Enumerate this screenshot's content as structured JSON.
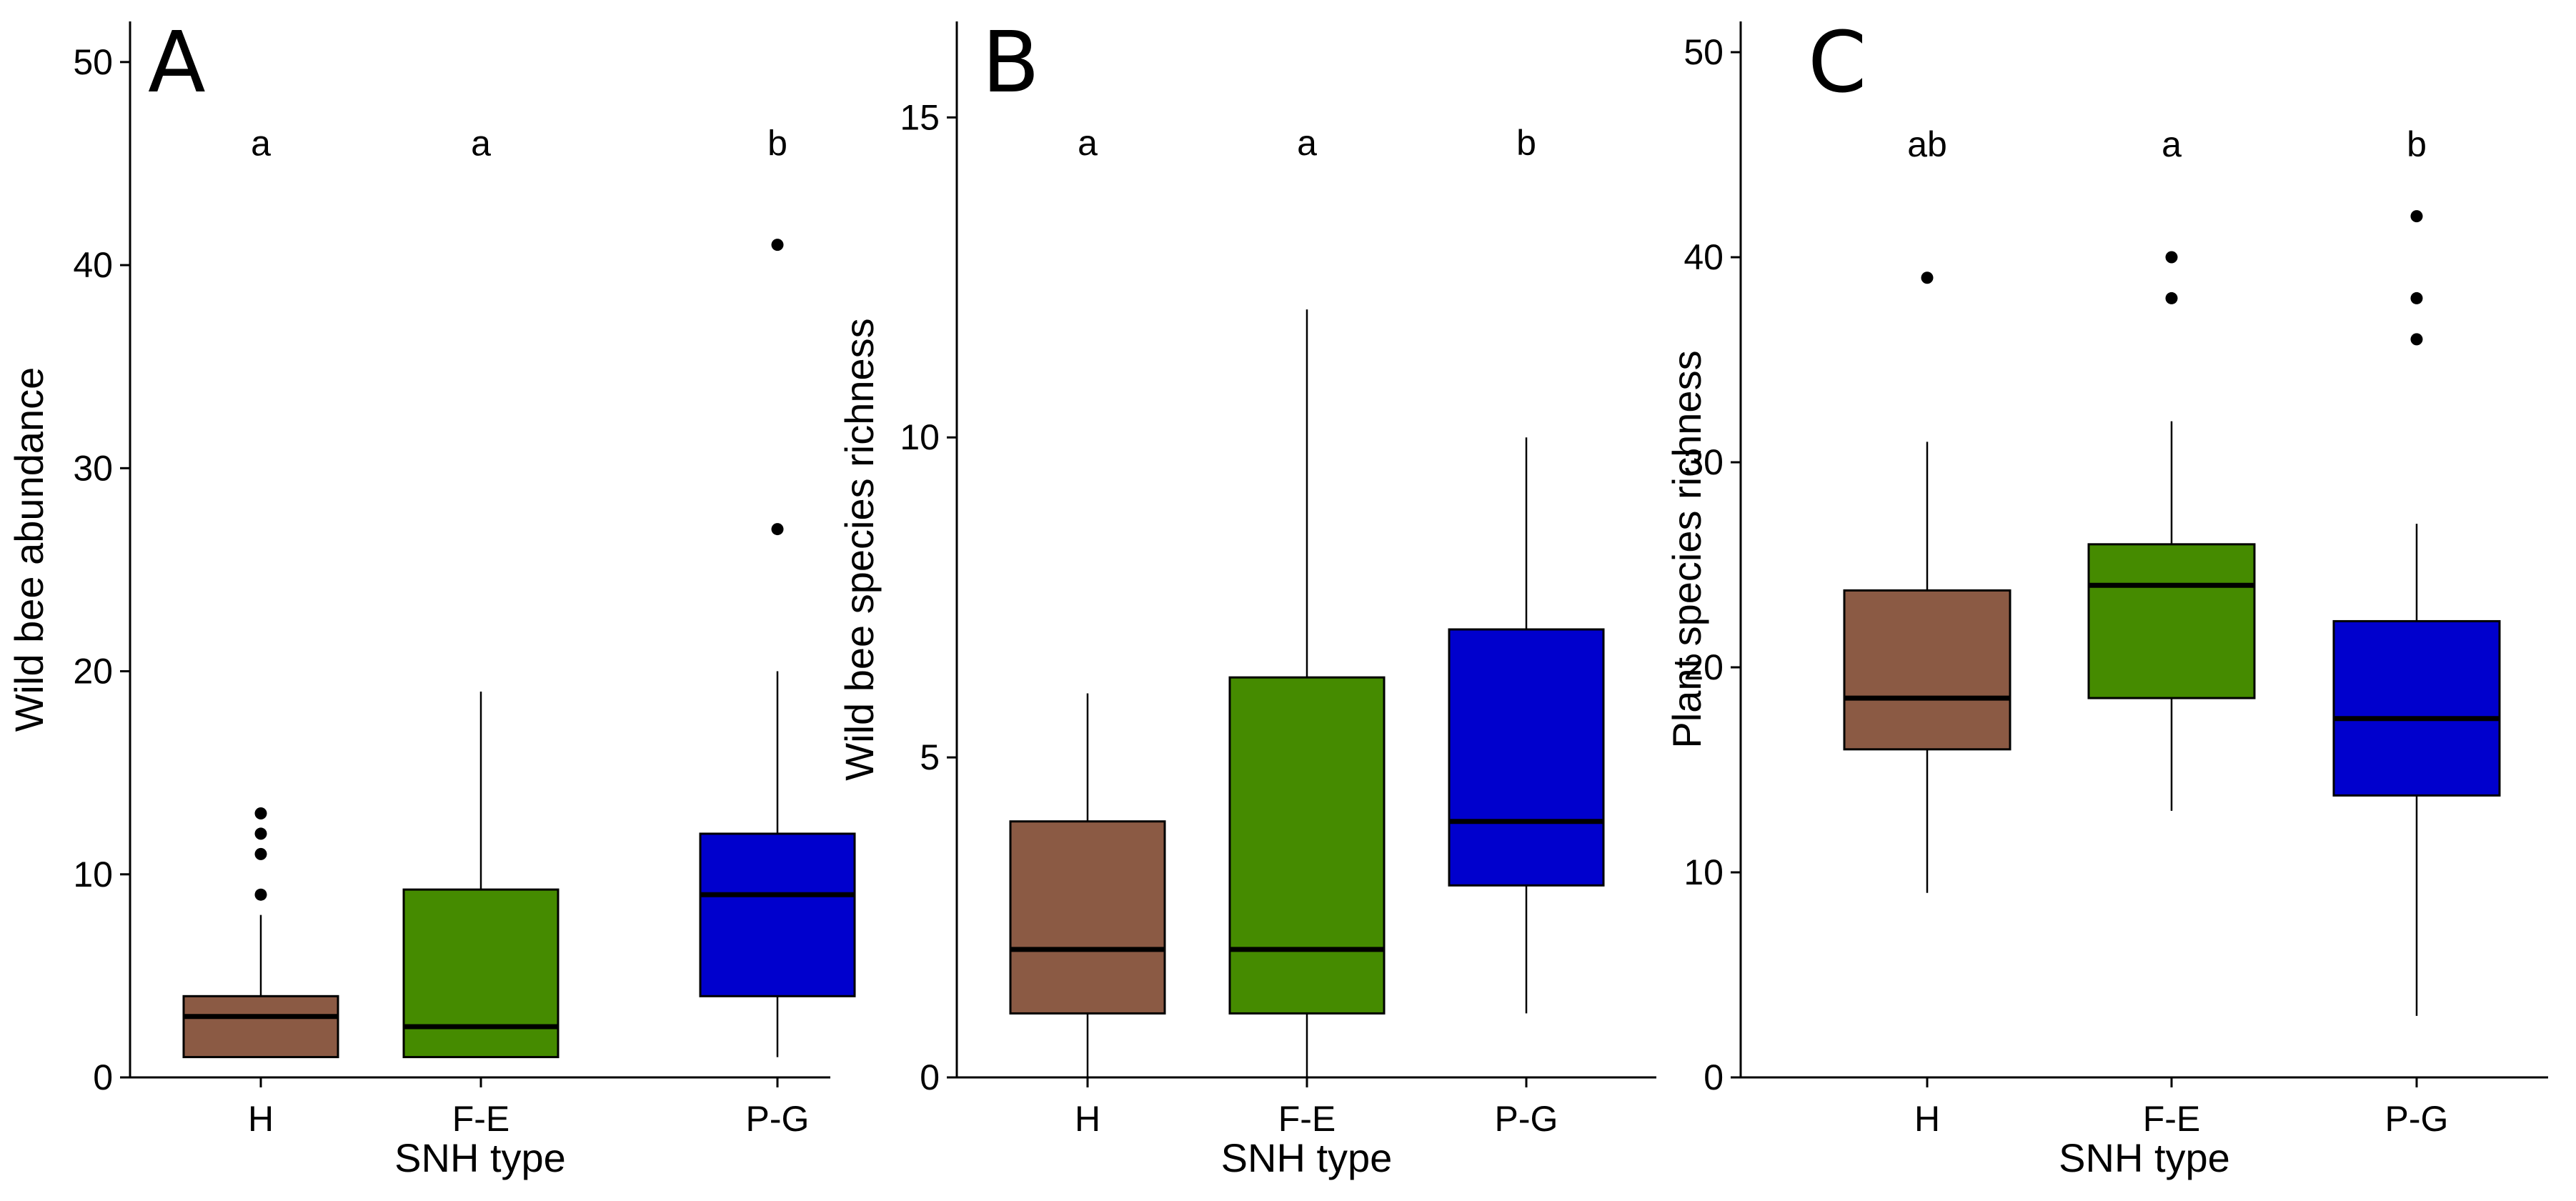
{
  "figure": {
    "fill_colors": {
      "H": "#8B5A44",
      "F-E": "#458B00",
      "P-G": "#0000CD"
    }
  },
  "chart_data": [
    {
      "panel": "A",
      "type": "box",
      "xlabel": "SNH type",
      "ylabel": "Wild bee abundance",
      "categories": [
        "H",
        "F-E",
        "P-G"
      ],
      "ylim": [
        0,
        52
      ],
      "yticks": [
        0,
        10,
        20,
        30,
        40,
        50
      ],
      "sig_y": 46,
      "boxes": [
        {
          "category": "H",
          "q1": 1,
          "median": 3,
          "q3": 4,
          "whisker_low": 1,
          "whisker_high": 8,
          "outliers": [
            9,
            11,
            12,
            13
          ],
          "sig": "a"
        },
        {
          "category": "F-E",
          "q1": 1,
          "median": 2.5,
          "q3": 9.25,
          "whisker_low": 1,
          "whisker_high": 19,
          "outliers": [],
          "sig": "a"
        },
        {
          "category": "P-G",
          "q1": 4,
          "median": 9,
          "q3": 12,
          "whisker_low": 1,
          "whisker_high": 20,
          "outliers": [
            27,
            41
          ],
          "sig": "b"
        }
      ]
    },
    {
      "panel": "B",
      "type": "box",
      "xlabel": "SNH type",
      "ylabel": "Wild bee species richness",
      "categories": [
        "H",
        "F-E",
        "P-G"
      ],
      "ylim": [
        0,
        16.5
      ],
      "yticks": [
        0,
        5,
        10,
        15
      ],
      "sig_y": 14.6,
      "boxes": [
        {
          "category": "H",
          "q1": 1,
          "median": 2,
          "q3": 4,
          "whisker_low": 0,
          "whisker_high": 6,
          "outliers": [],
          "sig": "a"
        },
        {
          "category": "F-E",
          "q1": 1,
          "median": 2,
          "q3": 6.25,
          "whisker_low": 0,
          "whisker_high": 12,
          "outliers": [],
          "sig": "a"
        },
        {
          "category": "P-G",
          "q1": 3,
          "median": 4,
          "q3": 7,
          "whisker_low": 1,
          "whisker_high": 10,
          "outliers": [],
          "sig": "b"
        }
      ]
    },
    {
      "panel": "C",
      "type": "box",
      "xlabel": "SNH type",
      "ylabel": "Plant species richness",
      "categories": [
        "H",
        "F-E",
        "P-G"
      ],
      "ylim": [
        0,
        51.5
      ],
      "yticks": [
        0,
        10,
        20,
        30,
        40,
        50
      ],
      "sig_y": 45.5,
      "boxes": [
        {
          "category": "H",
          "q1": 16,
          "median": 18.5,
          "q3": 23.75,
          "whisker_low": 9,
          "whisker_high": 31,
          "outliers": [
            39
          ],
          "sig": "ab"
        },
        {
          "category": "F-E",
          "q1": 18.5,
          "median": 24,
          "q3": 26,
          "whisker_low": 13,
          "whisker_high": 32,
          "outliers": [
            38,
            40
          ],
          "sig": "a"
        },
        {
          "category": "P-G",
          "q1": 13.75,
          "median": 17.5,
          "q3": 22.25,
          "whisker_low": 3,
          "whisker_high": 27,
          "outliers": [
            36,
            38,
            42
          ],
          "sig": "b"
        }
      ]
    }
  ]
}
